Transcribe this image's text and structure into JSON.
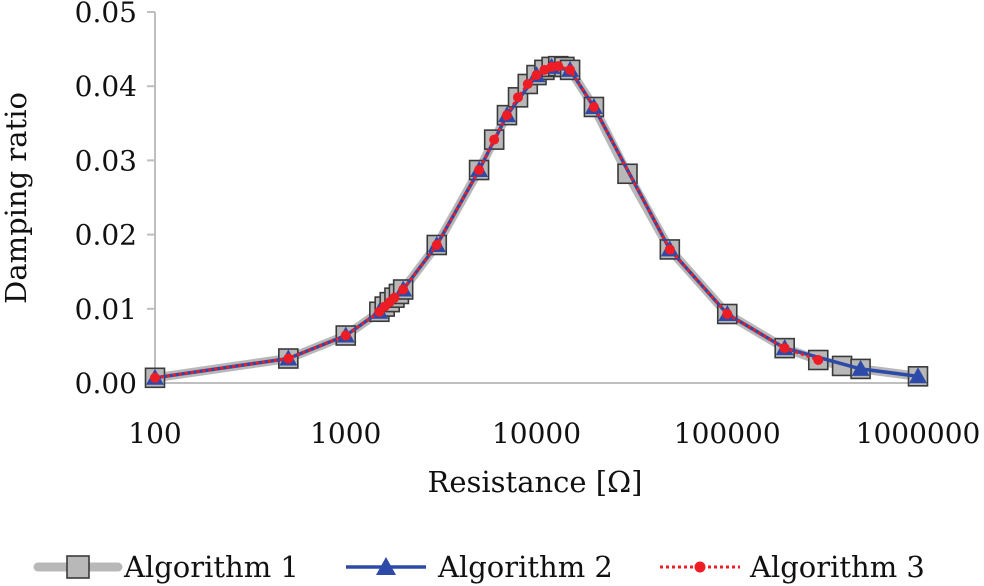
{
  "chart_data": {
    "type": "line",
    "x_scale": "log",
    "xlabel": "Resistance [Ω]",
    "ylabel": "Damping ratio",
    "xlim": [
      100,
      1000000
    ],
    "ylim": [
      0,
      0.05
    ],
    "x_ticks": [
      "100",
      "1000",
      "10000",
      "100000",
      "1000000"
    ],
    "y_ticks": [
      "0.00",
      "0.01",
      "0.02",
      "0.03",
      "0.04",
      "0.05"
    ],
    "y_tick_values": [
      0,
      0.01,
      0.02,
      0.03,
      0.04,
      0.05
    ],
    "x_tick_values": [
      100,
      1000,
      10000,
      100000,
      1000000
    ],
    "legend_position": "bottom",
    "series": [
      {
        "name": "Algorithm 1",
        "color": "#b8b8b8",
        "marker": "square",
        "x": [
          100,
          500,
          1000,
          1500,
          1600,
          1700,
          1800,
          1900,
          2000,
          3000,
          5000,
          6000,
          7000,
          8000,
          9000,
          10000,
          11000,
          12000,
          13000,
          14000,
          15000,
          20000,
          30000,
          50000,
          100000,
          200000,
          300000,
          400000,
          500000,
          1000000
        ],
        "values": [
          0.0007,
          0.0033,
          0.0064,
          0.0096,
          0.0103,
          0.0109,
          0.0115,
          0.012,
          0.0126,
          0.0186,
          0.0287,
          0.0328,
          0.0361,
          0.0385,
          0.0403,
          0.0415,
          0.0422,
          0.0426,
          0.0427,
          0.0426,
          0.0422,
          0.0372,
          0.0282,
          0.018,
          0.0093,
          0.0047,
          0.0031,
          0.0023,
          0.0019,
          0.0009
        ]
      },
      {
        "name": "Algorithm 2",
        "color": "#2e4aa8",
        "marker": "triangle",
        "x": [
          100,
          500,
          1000,
          1500,
          2000,
          3000,
          5000,
          7000,
          10000,
          12000,
          15000,
          20000,
          50000,
          100000,
          200000,
          500000,
          1000000
        ],
        "values": [
          0.0007,
          0.0033,
          0.0064,
          0.0096,
          0.0126,
          0.0186,
          0.0287,
          0.0361,
          0.0415,
          0.0426,
          0.0422,
          0.0372,
          0.018,
          0.0093,
          0.0047,
          0.0019,
          0.0009
        ]
      },
      {
        "name": "Algorithm 3",
        "color": "#ee1c25",
        "marker": "circle",
        "x": [
          100,
          500,
          1000,
          1500,
          1600,
          1700,
          1800,
          2000,
          3000,
          5000,
          6000,
          7000,
          8000,
          9000,
          10000,
          11000,
          12000,
          13000,
          15000,
          20000,
          50000,
          100000,
          200000,
          300000
        ],
        "values": [
          0.0007,
          0.0033,
          0.0064,
          0.0096,
          0.0103,
          0.0109,
          0.0115,
          0.0126,
          0.0186,
          0.0287,
          0.0328,
          0.0361,
          0.0385,
          0.0403,
          0.0415,
          0.0422,
          0.0426,
          0.0427,
          0.0422,
          0.0372,
          0.018,
          0.0093,
          0.0047,
          0.0031
        ]
      }
    ]
  }
}
